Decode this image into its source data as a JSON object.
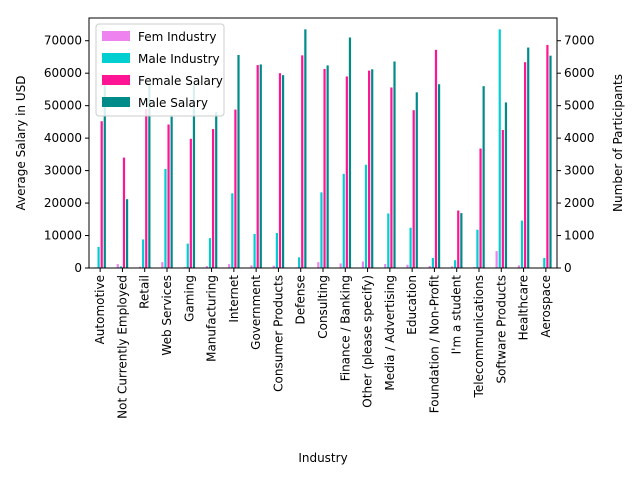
{
  "chart_data": {
    "type": "bar",
    "xlabel": "Industry",
    "ylabel_left": "Average Salary in USD",
    "ylabel_right": "Number of Participants",
    "ylim_left": [
      0,
      77000
    ],
    "ylim_right": [
      0,
      7700
    ],
    "yticks_left": [
      "0",
      "10000",
      "20000",
      "30000",
      "40000",
      "50000",
      "60000",
      "70000"
    ],
    "yticks_right": [
      "0",
      "1000",
      "2000",
      "3000",
      "4000",
      "5000",
      "6000",
      "7000"
    ],
    "legend_position": "upper-left",
    "categories": [
      "Automotive",
      "Not Currently Employed",
      "Retail",
      "Web Services",
      "Gaming",
      "Manufacturing",
      "Internet",
      "Government",
      "Consumer Products",
      "Defense",
      "Consulting",
      "Finance / Banking",
      "Other (please specify)",
      "Media / Advertising",
      "Education",
      "Foundation / Non-Profit",
      "I'm a student",
      "Telecommunications",
      "Software Products",
      "Healthcare",
      "Aerospace"
    ],
    "series": [
      {
        "name": "Fem Industry",
        "axis": "right",
        "color": "#ee82ee",
        "values": [
          20,
          120,
          40,
          180,
          30,
          60,
          120,
          80,
          70,
          20,
          180,
          140,
          200,
          120,
          100,
          60,
          50,
          30,
          520,
          80,
          20
        ]
      },
      {
        "name": "Male Industry",
        "axis": "right",
        "color": "#00ced1",
        "values": [
          650,
          50,
          880,
          3050,
          750,
          920,
          2300,
          1050,
          1080,
          330,
          2330,
          2900,
          3180,
          1680,
          1240,
          310,
          240,
          1180,
          7350,
          1460,
          310
        ]
      },
      {
        "name": "Female Salary",
        "axis": "left",
        "color": "#ff1493",
        "values": [
          45200,
          34000,
          49000,
          44200,
          39800,
          42800,
          48800,
          62500,
          60000,
          65500,
          61300,
          59000,
          60800,
          55600,
          48600,
          67200,
          17700,
          36800,
          42500,
          63400,
          68700
        ]
      },
      {
        "name": "Male Salary",
        "axis": "left",
        "color": "#008b8b",
        "values": [
          56300,
          21200,
          56300,
          46600,
          56500,
          48000,
          65600,
          62700,
          59400,
          73500,
          62400,
          71000,
          61200,
          63600,
          54100,
          56600,
          16900,
          56000,
          51000,
          67900,
          65400
        ]
      }
    ]
  }
}
